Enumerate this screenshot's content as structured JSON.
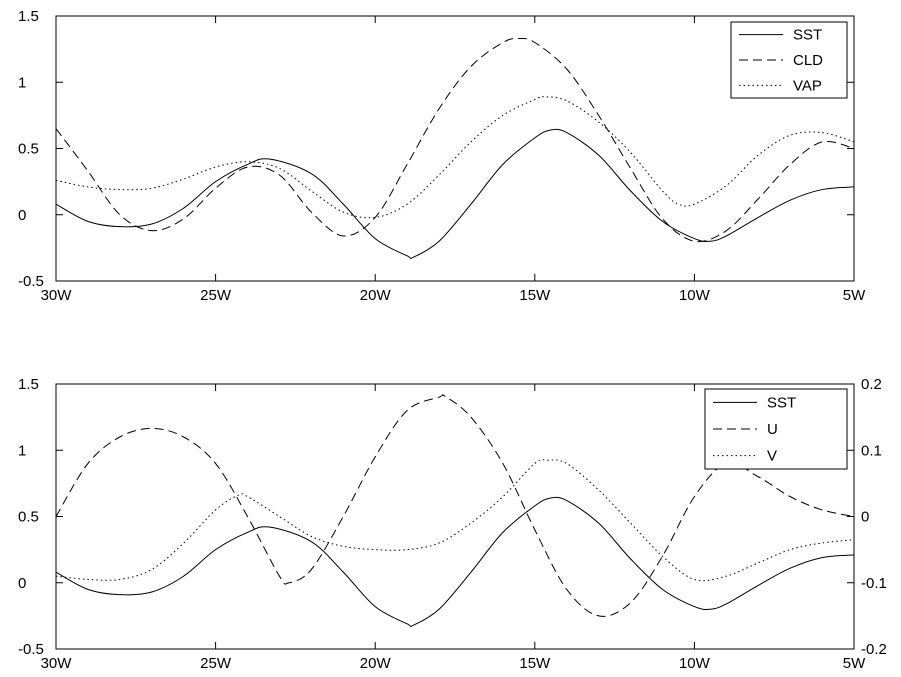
{
  "chart_data": [
    {
      "type": "line",
      "title": "",
      "xlabel": "",
      "ylabel": "",
      "xlim": [
        -30,
        -5
      ],
      "ylim": [
        -0.5,
        1.5
      ],
      "x_ticks": [
        -30,
        -25,
        -20,
        -15,
        -10,
        -5
      ],
      "x_tick_labels": [
        "30W",
        "25W",
        "20W",
        "15W",
        "10W",
        "5W"
      ],
      "y_ticks": [
        -0.5,
        0,
        0.5,
        1,
        1.5
      ],
      "y_tick_labels": [
        "-0.5",
        "0",
        "0.5",
        "1",
        "1.5"
      ],
      "grid": false,
      "legend_position": "top-right",
      "series": [
        {
          "name": "SST",
          "style": "solid",
          "color": "#000000",
          "x": [
            -30,
            -29,
            -28,
            -27,
            -26,
            -25,
            -24,
            -23.3,
            -22,
            -21,
            -20,
            -19,
            -18.8,
            -18,
            -17,
            -16,
            -15,
            -14.5,
            -14,
            -13,
            -12,
            -11,
            -10,
            -9.5,
            -9,
            -8,
            -7,
            -6,
            -5
          ],
          "y": [
            0.08,
            -0.05,
            -0.09,
            -0.07,
            0.05,
            0.25,
            0.38,
            0.42,
            0.31,
            0.08,
            -0.18,
            -0.31,
            -0.32,
            -0.2,
            0.08,
            0.38,
            0.58,
            0.64,
            0.62,
            0.45,
            0.18,
            -0.05,
            -0.18,
            -0.2,
            -0.16,
            -0.02,
            0.11,
            0.19,
            0.21
          ]
        },
        {
          "name": "CLD",
          "style": "dashed",
          "color": "#000000",
          "x": [
            -30,
            -29,
            -28,
            -27,
            -26,
            -25,
            -24,
            -23,
            -22,
            -21,
            -20,
            -19,
            -18,
            -17,
            -16,
            -15.5,
            -15,
            -14,
            -13,
            -12,
            -11,
            -10,
            -9,
            -8,
            -7,
            -6,
            -5
          ],
          "y": [
            0.65,
            0.33,
            0.0,
            -0.12,
            -0.03,
            0.2,
            0.36,
            0.3,
            0.02,
            -0.16,
            -0.02,
            0.38,
            0.8,
            1.12,
            1.3,
            1.33,
            1.3,
            1.1,
            0.75,
            0.35,
            -0.03,
            -0.2,
            -0.12,
            0.12,
            0.38,
            0.55,
            0.5
          ]
        },
        {
          "name": "VAP",
          "style": "dotted",
          "color": "#000000",
          "x": [
            -30,
            -29,
            -28,
            -27,
            -26,
            -25,
            -24,
            -23,
            -22,
            -21,
            -20,
            -19,
            -18,
            -17,
            -16,
            -15,
            -14.7,
            -14,
            -13,
            -12,
            -11,
            -10.5,
            -10,
            -9,
            -8,
            -7,
            -6,
            -5
          ],
          "y": [
            0.26,
            0.21,
            0.19,
            0.2,
            0.27,
            0.36,
            0.4,
            0.35,
            0.18,
            0.02,
            -0.02,
            0.08,
            0.3,
            0.55,
            0.75,
            0.87,
            0.89,
            0.86,
            0.7,
            0.47,
            0.18,
            0.08,
            0.08,
            0.22,
            0.45,
            0.6,
            0.62,
            0.55
          ]
        }
      ]
    },
    {
      "type": "line",
      "title": "",
      "xlabel": "",
      "ylabel": "",
      "xlim": [
        -30,
        -5
      ],
      "ylim": [
        -0.5,
        1.5
      ],
      "y2lim": [
        -0.2,
        0.2
      ],
      "x_ticks": [
        -30,
        -25,
        -20,
        -15,
        -10,
        -5
      ],
      "x_tick_labels": [
        "30W",
        "25W",
        "20W",
        "15W",
        "10W",
        "5W"
      ],
      "y_ticks": [
        -0.5,
        0,
        0.5,
        1,
        1.5
      ],
      "y_tick_labels": [
        "-0.5",
        "0",
        "0.5",
        "1",
        "1.5"
      ],
      "y2_ticks": [
        -0.2,
        -0.1,
        0,
        0.1,
        0.2
      ],
      "y2_tick_labels": [
        "-0.2",
        "-0.1",
        "0",
        "0.1",
        "0.2"
      ],
      "grid": false,
      "legend_position": "top-right",
      "series": [
        {
          "name": "SST",
          "style": "solid",
          "color": "#000000",
          "axis": "left",
          "x": [
            -30,
            -29,
            -28,
            -27,
            -26,
            -25,
            -24,
            -23.3,
            -22,
            -21,
            -20,
            -19,
            -18.8,
            -18,
            -17,
            -16,
            -15,
            -14.5,
            -14,
            -13,
            -12,
            -11,
            -10,
            -9.5,
            -9,
            -8,
            -7,
            -6,
            -5
          ],
          "y": [
            0.08,
            -0.05,
            -0.09,
            -0.07,
            0.05,
            0.25,
            0.38,
            0.42,
            0.31,
            0.08,
            -0.18,
            -0.31,
            -0.32,
            -0.2,
            0.08,
            0.38,
            0.58,
            0.64,
            0.62,
            0.45,
            0.18,
            -0.05,
            -0.18,
            -0.2,
            -0.16,
            -0.02,
            0.11,
            0.19,
            0.21
          ]
        },
        {
          "name": "U",
          "style": "dashed",
          "color": "#000000",
          "axis": "right",
          "x": [
            -30,
            -29,
            -28,
            -27,
            -26,
            -25,
            -24,
            -23,
            -22.7,
            -22,
            -21,
            -20,
            -19,
            -18,
            -17.8,
            -17,
            -16,
            -15,
            -14,
            -13,
            -12,
            -11,
            -10,
            -9,
            -8,
            -7,
            -6,
            -5
          ],
          "y": [
            0.0,
            0.08,
            0.12,
            0.133,
            0.12,
            0.08,
            0.0,
            -0.09,
            -0.1,
            -0.08,
            0.0,
            0.09,
            0.16,
            0.18,
            0.181,
            0.15,
            0.08,
            -0.02,
            -0.11,
            -0.15,
            -0.13,
            -0.06,
            0.03,
            0.08,
            0.06,
            0.03,
            0.01,
            0.0
          ]
        },
        {
          "name": "V",
          "style": "dotted",
          "color": "#000000",
          "axis": "right",
          "x": [
            -30,
            -29,
            -28,
            -27,
            -26,
            -25,
            -24.3,
            -24,
            -23,
            -22,
            -21,
            -20,
            -19,
            -18,
            -17,
            -16,
            -15,
            -14.6,
            -14,
            -13,
            -12,
            -11,
            -10,
            -9,
            -8,
            -7,
            -6,
            -5
          ],
          "y": [
            -0.09,
            -0.095,
            -0.095,
            -0.08,
            -0.04,
            0.01,
            0.032,
            0.03,
            0.0,
            -0.03,
            -0.045,
            -0.05,
            -0.05,
            -0.04,
            -0.01,
            0.03,
            0.08,
            0.085,
            0.08,
            0.04,
            -0.01,
            -0.06,
            -0.095,
            -0.09,
            -0.07,
            -0.05,
            -0.04,
            -0.035
          ]
        }
      ]
    }
  ]
}
